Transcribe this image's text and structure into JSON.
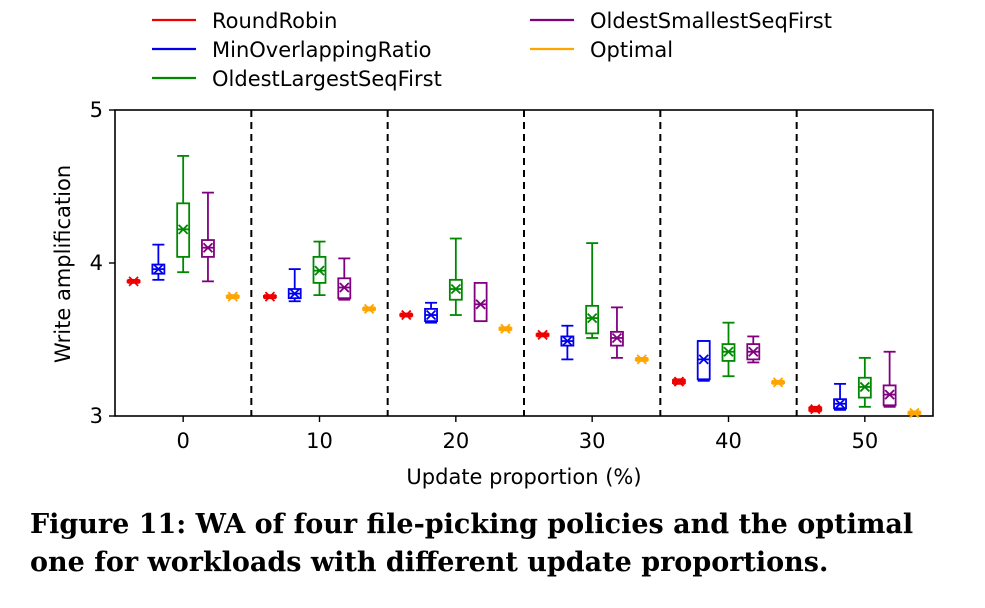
{
  "caption": "Figure 11: WA of four file-picking policies and the optimal one for workloads with different update proportions.",
  "chart_data": {
    "type": "box",
    "xlabel": "Update proportion (%)",
    "ylabel": "Write amplification",
    "ylim": [
      3,
      5
    ],
    "yticks": [
      3,
      4,
      5
    ],
    "categories": [
      "0",
      "10",
      "20",
      "30",
      "40",
      "50"
    ],
    "legend_position": "top",
    "separators": "dashed",
    "series": [
      {
        "name": "RoundRobin",
        "color": "#ee0000",
        "boxes": [
          {
            "whislo": 3.87,
            "q1": 3.875,
            "med": 3.88,
            "q3": 3.885,
            "whishi": 3.89,
            "mean": 3.88
          },
          {
            "whislo": 3.77,
            "q1": 3.775,
            "med": 3.78,
            "q3": 3.785,
            "whishi": 3.79,
            "mean": 3.78
          },
          {
            "whislo": 3.65,
            "q1": 3.655,
            "med": 3.66,
            "q3": 3.665,
            "whishi": 3.67,
            "mean": 3.66
          },
          {
            "whislo": 3.52,
            "q1": 3.525,
            "med": 3.53,
            "q3": 3.535,
            "whishi": 3.54,
            "mean": 3.53
          },
          {
            "whislo": 3.21,
            "q1": 3.215,
            "med": 3.225,
            "q3": 3.235,
            "whishi": 3.24,
            "mean": 3.225
          },
          {
            "whislo": 3.03,
            "q1": 3.035,
            "med": 3.045,
            "q3": 3.055,
            "whishi": 3.06,
            "mean": 3.045
          }
        ]
      },
      {
        "name": "MinOverlappingRatio",
        "color": "#0000ee",
        "boxes": [
          {
            "whislo": 3.89,
            "q1": 3.93,
            "med": 3.96,
            "q3": 3.99,
            "whishi": 4.12,
            "mean": 3.96
          },
          {
            "whislo": 3.75,
            "q1": 3.77,
            "med": 3.8,
            "q3": 3.83,
            "whishi": 3.96,
            "mean": 3.8
          },
          {
            "whislo": 3.61,
            "q1": 3.62,
            "med": 3.66,
            "q3": 3.7,
            "whishi": 3.74,
            "mean": 3.66
          },
          {
            "whislo": 3.37,
            "q1": 3.46,
            "med": 3.49,
            "q3": 3.52,
            "whishi": 3.59,
            "mean": 3.49
          },
          {
            "whislo": 3.23,
            "q1": 3.24,
            "med": 3.37,
            "q3": 3.49,
            "whishi": 3.49,
            "mean": 3.37
          },
          {
            "whislo": 3.04,
            "q1": 3.05,
            "med": 3.08,
            "q3": 3.11,
            "whishi": 3.21,
            "mean": 3.08
          }
        ]
      },
      {
        "name": "OldestLargestSeqFirst",
        "color": "#008800",
        "boxes": [
          {
            "whislo": 3.94,
            "q1": 4.04,
            "med": 4.22,
            "q3": 4.39,
            "whishi": 4.7,
            "mean": 4.22
          },
          {
            "whislo": 3.79,
            "q1": 3.87,
            "med": 3.95,
            "q3": 4.04,
            "whishi": 4.14,
            "mean": 3.95
          },
          {
            "whislo": 3.66,
            "q1": 3.76,
            "med": 3.83,
            "q3": 3.89,
            "whishi": 4.16,
            "mean": 3.83
          },
          {
            "whislo": 3.51,
            "q1": 3.54,
            "med": 3.64,
            "q3": 3.72,
            "whishi": 4.13,
            "mean": 3.64
          },
          {
            "whislo": 3.26,
            "q1": 3.36,
            "med": 3.42,
            "q3": 3.47,
            "whishi": 3.61,
            "mean": 3.42
          },
          {
            "whislo": 3.06,
            "q1": 3.12,
            "med": 3.19,
            "q3": 3.25,
            "whishi": 3.38,
            "mean": 3.19
          }
        ]
      },
      {
        "name": "OldestSmallestSeqFirst",
        "color": "#800080",
        "boxes": [
          {
            "whislo": 3.88,
            "q1": 4.04,
            "med": 4.1,
            "q3": 4.15,
            "whishi": 4.46,
            "mean": 4.1
          },
          {
            "whislo": 3.76,
            "q1": 3.77,
            "med": 3.84,
            "q3": 3.9,
            "whishi": 4.03,
            "mean": 3.84
          },
          {
            "whislo": 3.62,
            "q1": 3.62,
            "med": 3.73,
            "q3": 3.87,
            "whishi": 3.87,
            "mean": 3.73
          },
          {
            "whislo": 3.38,
            "q1": 3.46,
            "med": 3.51,
            "q3": 3.55,
            "whishi": 3.71,
            "mean": 3.51
          },
          {
            "whislo": 3.35,
            "q1": 3.37,
            "med": 3.42,
            "q3": 3.47,
            "whishi": 3.52,
            "mean": 3.42
          },
          {
            "whislo": 3.06,
            "q1": 3.07,
            "med": 3.14,
            "q3": 3.2,
            "whishi": 3.42,
            "mean": 3.14
          }
        ]
      },
      {
        "name": "Optimal",
        "color": "#ffa500",
        "boxes": [
          {
            "whislo": 3.77,
            "q1": 3.775,
            "med": 3.78,
            "q3": 3.785,
            "whishi": 3.79,
            "mean": 3.78
          },
          {
            "whislo": 3.69,
            "q1": 3.695,
            "med": 3.7,
            "q3": 3.705,
            "whishi": 3.71,
            "mean": 3.7
          },
          {
            "whislo": 3.56,
            "q1": 3.565,
            "med": 3.57,
            "q3": 3.575,
            "whishi": 3.58,
            "mean": 3.57
          },
          {
            "whislo": 3.36,
            "q1": 3.365,
            "med": 3.37,
            "q3": 3.375,
            "whishi": 3.38,
            "mean": 3.37
          },
          {
            "whislo": 3.21,
            "q1": 3.215,
            "med": 3.22,
            "q3": 3.225,
            "whishi": 3.23,
            "mean": 3.22
          },
          {
            "whislo": 3.01,
            "q1": 3.015,
            "med": 3.02,
            "q3": 3.025,
            "whishi": 3.03,
            "mean": 3.02
          }
        ]
      }
    ]
  }
}
